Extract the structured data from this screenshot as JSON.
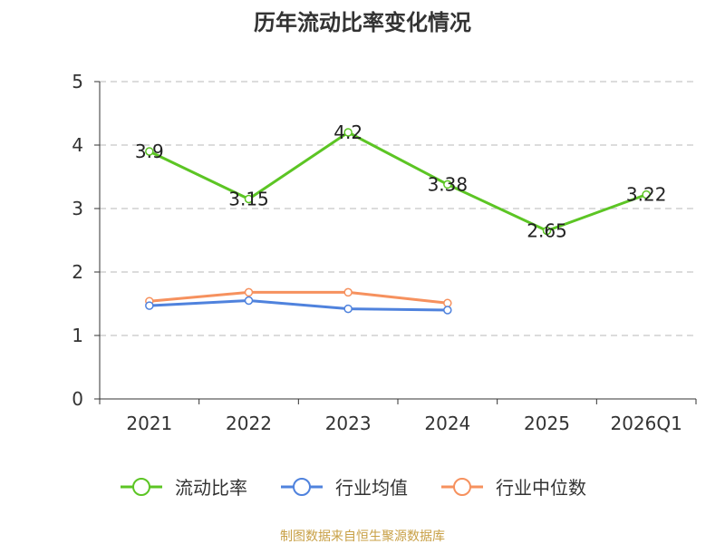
{
  "chart_data": {
    "type": "line",
    "title": "历年流动比率变化情况",
    "xlabel": "",
    "ylabel": "",
    "categories": [
      "2021",
      "2022",
      "2023",
      "2024",
      "2025",
      "2026Q1"
    ],
    "ylim": [
      0,
      5
    ],
    "yticks": [
      "0",
      "1",
      "2",
      "3",
      "4",
      "5"
    ],
    "grid": true,
    "legend_position": "bottom",
    "series": [
      {
        "name": "流动比率",
        "color": "#5cc524",
        "values": [
          3.9,
          3.15,
          4.2,
          3.38,
          2.65,
          3.22
        ],
        "labels": [
          "3.9",
          "3.15",
          "4.2",
          "3.38",
          "2.65",
          "3.22"
        ]
      },
      {
        "name": "行业均值",
        "color": "#4f82dd",
        "values": [
          1.47,
          1.55,
          1.42,
          1.4,
          null,
          null
        ]
      },
      {
        "name": "行业中位数",
        "color": "#f6915e",
        "values": [
          1.54,
          1.68,
          1.68,
          1.51,
          null,
          null
        ]
      }
    ]
  },
  "source": {
    "text": "制图数据来自恒生聚源数据库",
    "color": "#c8a046"
  }
}
